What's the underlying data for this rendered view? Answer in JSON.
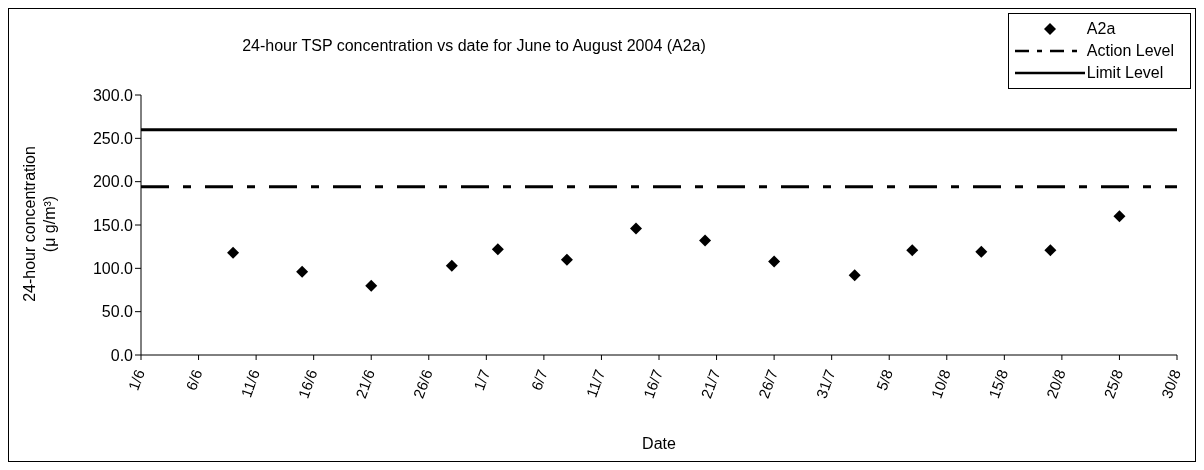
{
  "chart_data": {
    "type": "scatter",
    "title": "24-hour TSP concentration vs date for June to August 2004 (A2a)",
    "xlabel": "Date",
    "ylabel": "24-hour concentration (μ g/m³)",
    "x": [
      "--06-09",
      "--06-15",
      "--06-21",
      "--06-28",
      "--07-02",
      "--07-08",
      "--07-14",
      "--07-20",
      "--07-26",
      "--08-02",
      "--08-07",
      "--08-13",
      "--08-19",
      "--08-25"
    ],
    "series": [
      {
        "name": "A2a",
        "color": "#000000",
        "values": [
          118,
          96,
          80,
          103,
          122,
          110,
          146,
          132,
          108,
          92,
          121,
          119,
          121,
          160
        ]
      }
    ],
    "xlim": [
      "--06-01",
      "--08-30"
    ],
    "xticks": [
      {
        "value": "--06-01",
        "label": "1/6"
      },
      {
        "value": "--06-06",
        "label": "6/6"
      },
      {
        "value": "--06-11",
        "label": "11/6"
      },
      {
        "value": "--06-16",
        "label": "16/6"
      },
      {
        "value": "--06-21",
        "label": "21/6"
      },
      {
        "value": "--06-26",
        "label": "26/6"
      },
      {
        "value": "--07-01",
        "label": "1/7"
      },
      {
        "value": "--07-06",
        "label": "6/7"
      },
      {
        "value": "--07-11",
        "label": "11/7"
      },
      {
        "value": "--07-16",
        "label": "16/7"
      },
      {
        "value": "--07-21",
        "label": "21/7"
      },
      {
        "value": "--07-26",
        "label": "26/7"
      },
      {
        "value": "--07-31",
        "label": "31/7"
      },
      {
        "value": "--08-05",
        "label": "5/8"
      },
      {
        "value": "--08-10",
        "label": "10/8"
      },
      {
        "value": "--08-15",
        "label": "15/8"
      },
      {
        "value": "--08-20",
        "label": "20/8"
      },
      {
        "value": "--08-25",
        "label": "25/8"
      },
      {
        "value": "--08-30",
        "label": "30/8"
      }
    ],
    "ylim": [
      0,
      300
    ],
    "yticks": [
      {
        "value": 0,
        "label": "0.0"
      },
      {
        "value": 50,
        "label": "50.0"
      },
      {
        "value": 100,
        "label": "100.0"
      },
      {
        "value": 150,
        "label": "150.0"
      },
      {
        "value": 200,
        "label": "200.0"
      },
      {
        "value": 250,
        "label": "250.0"
      },
      {
        "value": 300,
        "label": "300.0"
      }
    ],
    "ref_lines": [
      {
        "axis": "y",
        "value": 194,
        "label": "Action Level",
        "color": "#000000",
        "line_style": "dashdot"
      },
      {
        "axis": "y",
        "value": 260,
        "label": "Limit Level",
        "color": "#000000",
        "line_style": "solid"
      }
    ],
    "marker": "diamond",
    "grid": false,
    "legend": "top right"
  }
}
